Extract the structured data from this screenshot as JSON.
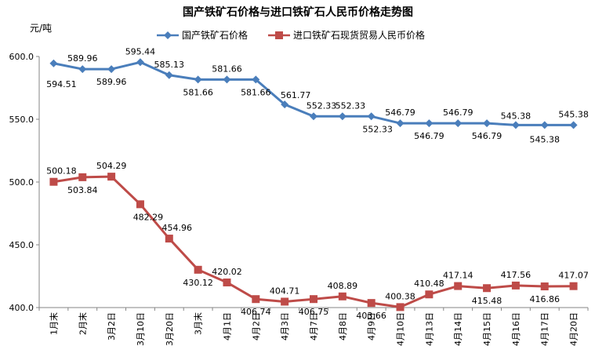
{
  "chart_data": {
    "type": "line",
    "title": "国产铁矿石价格与进口铁矿石人民币价格走势图",
    "ylabel": "元/吨",
    "ylim": [
      400,
      600
    ],
    "yticks": [
      "400.0",
      "450.0",
      "500.0",
      "550.0",
      "600.0"
    ],
    "ytick_values": [
      400,
      450,
      500,
      550,
      600
    ],
    "categories": [
      "1月末",
      "2月末",
      "3月2日",
      "3月10日",
      "3月20日",
      "3月末",
      "4月1日",
      "4月2日",
      "4月3日",
      "4月7日",
      "4月8日",
      "4月9日",
      "4月10日",
      "4月13日",
      "4月14日",
      "4月15日",
      "4月16日",
      "4月17日",
      "4月20日"
    ],
    "legend_position": "top",
    "grid": false,
    "series": [
      {
        "name": "国产铁矿石价格",
        "color": "#4A7EBB",
        "marker": "diamond",
        "values": [
          594.51,
          589.96,
          589.96,
          595.44,
          585.13,
          581.66,
          581.66,
          581.66,
          561.77,
          552.33,
          552.33,
          552.33,
          546.79,
          546.79,
          546.79,
          546.79,
          545.38,
          545.38,
          545.38
        ],
        "labels": [
          "594.51",
          "589.96",
          "589.96",
          "595.44",
          "585.13",
          "581.66",
          "581.66",
          "581.66",
          "561.77",
          "552.33",
          "552.33",
          "552.33",
          "546.79",
          "546.79",
          "546.79",
          "546.79",
          "545.38",
          "545.38",
          "545.38"
        ]
      },
      {
        "name": "进口铁矿石现货贸易人民币价格",
        "color": "#BE4B48",
        "marker": "square",
        "values": [
          500.18,
          503.84,
          504.29,
          482.29,
          454.96,
          430.12,
          420.02,
          406.74,
          404.71,
          406.75,
          408.89,
          403.66,
          400.38,
          410.48,
          417.14,
          415.48,
          417.56,
          416.86,
          417.07
        ],
        "labels": [
          "500.18",
          "503.84",
          "504.29",
          "482.29",
          "454.96",
          "430.12",
          "420.02",
          "406.74",
          "404.71",
          "406.75",
          "408.89",
          "403.66",
          "400.38",
          "410.48",
          "417.14",
          "415.48",
          "417.56",
          "416.86",
          "417.07"
        ]
      }
    ]
  }
}
